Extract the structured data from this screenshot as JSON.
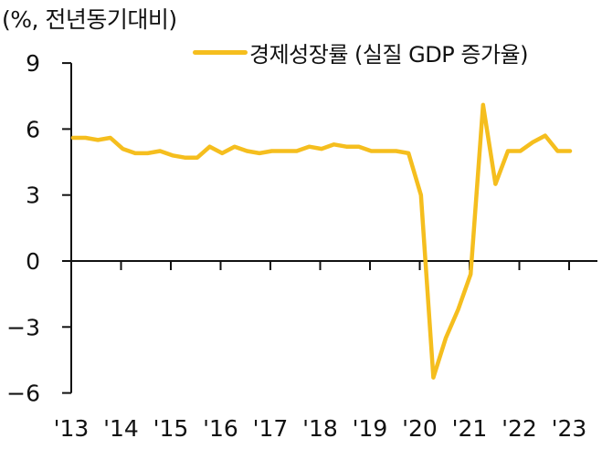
{
  "chart_data": {
    "type": "line",
    "unit_label": "(%, 전년동기대비)",
    "xlabel": "",
    "ylabel": "(%, 전년동기대비)",
    "ylim": [
      -6,
      9
    ],
    "yticks": [
      9,
      6,
      3,
      0,
      -3,
      -6
    ],
    "ytick_labels": [
      "9",
      "6",
      "3",
      "0",
      "-3",
      "-6"
    ],
    "xtick_labels": [
      "'13",
      "'14",
      "'15",
      "'16",
      "'17",
      "'18",
      "'19",
      "'20",
      "'21",
      "'22",
      "'23"
    ],
    "grid": false,
    "legend_position": "top-right",
    "frequency": "quarterly",
    "series": [
      {
        "name": "경제성장률 (실질 GDP 증가율)",
        "color": "#F5BE1E",
        "values": [
          5.6,
          5.6,
          5.5,
          5.6,
          5.1,
          4.9,
          4.9,
          5.0,
          4.8,
          4.7,
          4.7,
          5.2,
          4.9,
          5.2,
          5.0,
          4.9,
          5.0,
          5.0,
          5.0,
          5.2,
          5.1,
          5.3,
          5.2,
          5.2,
          5.0,
          5.0,
          5.0,
          4.9,
          3.0,
          -5.3,
          -3.5,
          -2.2,
          -0.6,
          7.1,
          3.5,
          5.0,
          5.0,
          5.4,
          5.7,
          5.0,
          5.0
        ]
      }
    ]
  },
  "legend": {
    "label": "경제성장률 (실질 GDP 증가율)"
  },
  "unit": "(%, 전년동기대비)"
}
